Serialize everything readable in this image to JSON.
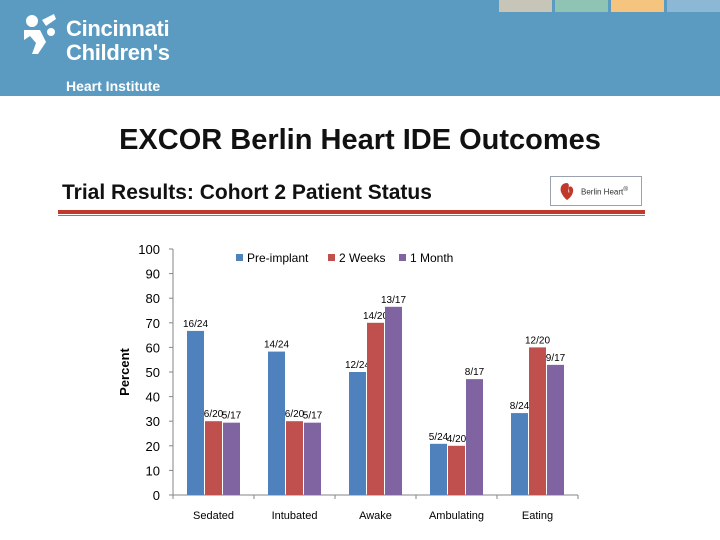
{
  "header": {
    "logo_line1": "Cincinnati",
    "logo_line2": "Children's",
    "logo_line3": "Heart Institute",
    "tab_colors": [
      "#c7c5b7",
      "#8fc3b3",
      "#f5c57f",
      "#8cb8d6"
    ],
    "band_color": "#5b9bc1"
  },
  "slide": {
    "title": "EXCOR Berlin Heart IDE Outcomes",
    "subtitle": "Trial Results: Cohort 2 Patient Status",
    "brand_name": "Berlin Heart",
    "brand_mark": "®",
    "rule_color": "#c0392b"
  },
  "chart_data": {
    "type": "bar",
    "title": "",
    "xlabel": "",
    "ylabel": "Percent",
    "ylim": [
      0,
      100
    ],
    "yticks": [
      0,
      10,
      20,
      30,
      40,
      50,
      60,
      70,
      80,
      90,
      100
    ],
    "grid": false,
    "legend_position": "top",
    "categories": [
      "Sedated",
      "Intubated",
      "Awake",
      "Ambulating",
      "Eating"
    ],
    "series": [
      {
        "name": "Pre-implant",
        "color": "#4f81bd",
        "values": [
          66.7,
          58.3,
          50.0,
          20.8,
          33.3
        ],
        "labels": [
          "16/24",
          "14/24",
          "12/24",
          "5/24",
          "8/24"
        ]
      },
      {
        "name": "2 Weeks",
        "color": "#c0504d",
        "values": [
          30.0,
          30.0,
          70.0,
          20.0,
          60.0
        ],
        "labels": [
          "6/20",
          "6/20",
          "14/20",
          "4/20",
          "12/20"
        ]
      },
      {
        "name": "1 Month",
        "color": "#8064a2",
        "values": [
          29.4,
          29.4,
          76.5,
          47.1,
          52.9
        ],
        "labels": [
          "5/17",
          "5/17",
          "13/17",
          "8/17",
          "9/17"
        ]
      }
    ]
  }
}
